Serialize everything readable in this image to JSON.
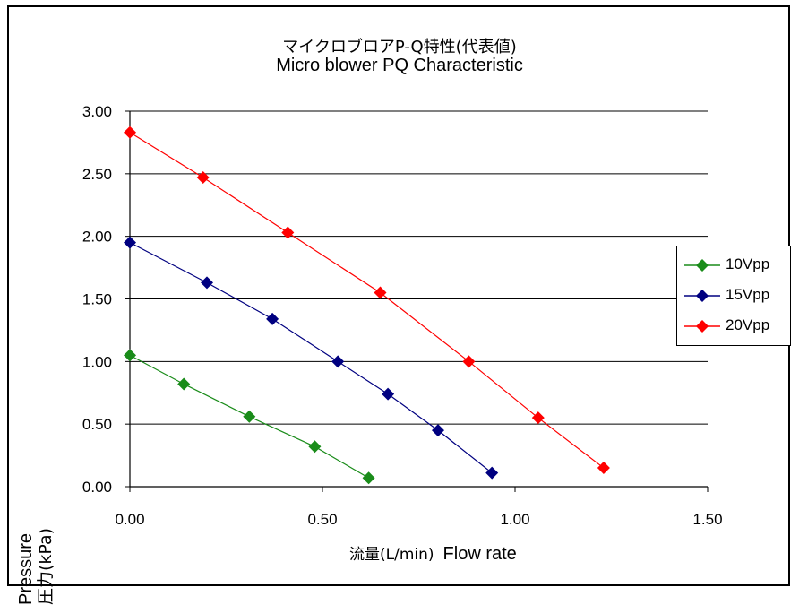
{
  "chart_data": {
    "type": "line",
    "title": "マイクロブロアP-Q特性(代表値)",
    "subtitle": "Micro blower PQ Characteristic",
    "ylabel_en": "Pressure",
    "ylabel_jp": "圧力(kPa)",
    "xlabel_jp": "流量(L/min)",
    "xlabel_en": "Flow rate",
    "xlim": [
      0,
      1.5
    ],
    "ylim": [
      0,
      3.0
    ],
    "x_ticks": [
      "0.00",
      "0.50",
      "1.00",
      "1.50"
    ],
    "y_ticks": [
      "0.00",
      "0.50",
      "1.00",
      "1.50",
      "2.00",
      "2.50",
      "3.00"
    ],
    "grid": "horizontal",
    "legend_position": "right",
    "series": [
      {
        "name": "10Vpp",
        "color": "#1a8c1a",
        "x": [
          0.0,
          0.14,
          0.31,
          0.48,
          0.62
        ],
        "y": [
          1.05,
          0.82,
          0.56,
          0.32,
          0.07
        ]
      },
      {
        "name": "15Vpp",
        "color": "#000080",
        "x": [
          0.0,
          0.2,
          0.37,
          0.54,
          0.67,
          0.8,
          0.94
        ],
        "y": [
          1.95,
          1.63,
          1.34,
          1.0,
          0.74,
          0.45,
          0.11
        ]
      },
      {
        "name": "20Vpp",
        "color": "#ff0000",
        "x": [
          0.0,
          0.19,
          0.41,
          0.65,
          0.88,
          1.06,
          1.23
        ],
        "y": [
          2.83,
          2.47,
          2.03,
          1.55,
          1.0,
          0.55,
          0.15
        ]
      }
    ]
  }
}
